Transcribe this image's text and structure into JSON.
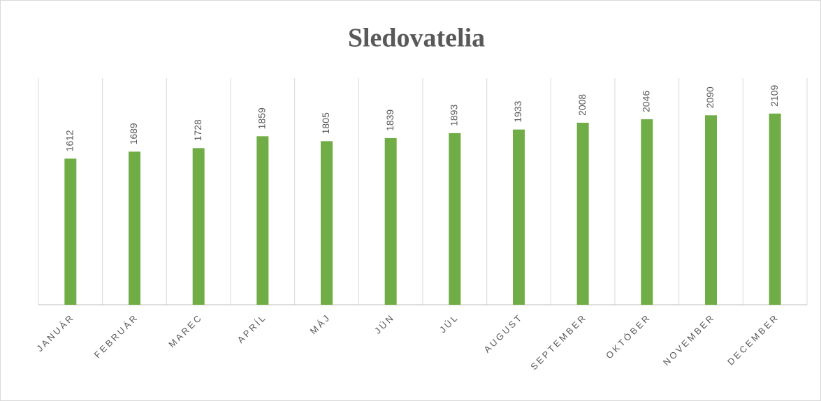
{
  "chart_data": {
    "type": "bar",
    "title": "Sledovatelia",
    "categories": [
      "JANUÁR",
      "FEBRUÁR",
      "MAREC",
      "APRÍL",
      "MÁJ",
      "JÚN",
      "JÚL",
      "AUGUST",
      "SEPTEMBER",
      "OKTÓBER",
      "NOVEMBER",
      "DECEMBER"
    ],
    "values": [
      1612,
      1689,
      1728,
      1859,
      1805,
      1839,
      1893,
      1933,
      2008,
      2046,
      2090,
      2109
    ],
    "color": "#70ad47",
    "ylim": [
      0,
      2500
    ]
  }
}
